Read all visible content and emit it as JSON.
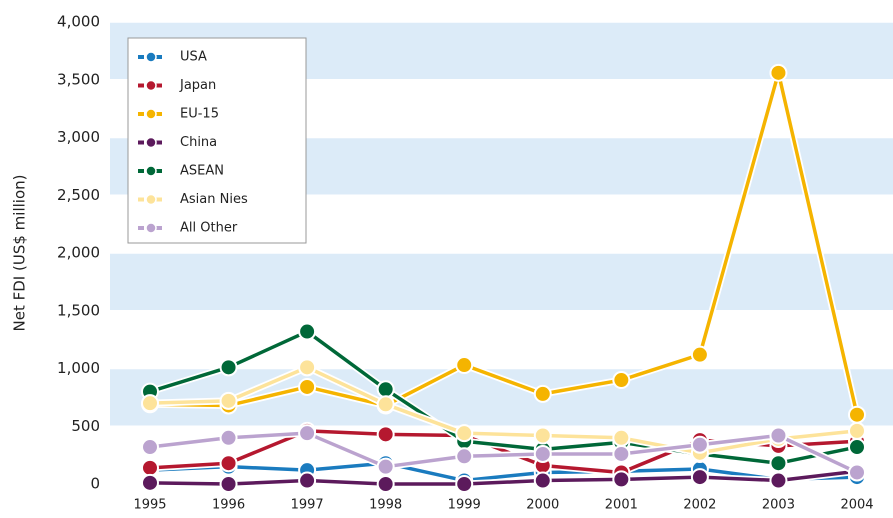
{
  "chart_data": {
    "type": "line",
    "y_label": "Net FDI (US$ million)",
    "categories": [
      "1995",
      "1996",
      "1997",
      "1998",
      "1999",
      "2000",
      "2001",
      "2002",
      "2003",
      "2004"
    ],
    "series": [
      {
        "name": "USA",
        "color": "#1a7bbf",
        "values": [
          120,
          150,
          120,
          180,
          30,
          100,
          110,
          130,
          40,
          60
        ]
      },
      {
        "name": "Japan",
        "color": "#b5182f",
        "values": [
          140,
          180,
          460,
          430,
          420,
          160,
          100,
          380,
          330,
          370
        ]
      },
      {
        "name": "EU-15",
        "color": "#f5b400",
        "values": [
          690,
          680,
          840,
          680,
          1030,
          780,
          900,
          1120,
          3560,
          600
        ]
      },
      {
        "name": "China",
        "color": "#5c1a5c",
        "values": [
          10,
          0,
          30,
          0,
          0,
          30,
          40,
          60,
          30,
          110
        ]
      },
      {
        "name": "ASEAN",
        "color": "#006838",
        "values": [
          800,
          1010,
          1320,
          820,
          370,
          300,
          360,
          260,
          180,
          320
        ]
      },
      {
        "name": "Asian Nies",
        "color": "#fde39a",
        "values": [
          700,
          720,
          1010,
          690,
          440,
          420,
          400,
          270,
          390,
          460
        ]
      },
      {
        "name": "All Other",
        "color": "#bba3cf",
        "values": [
          320,
          400,
          440,
          150,
          240,
          260,
          260,
          340,
          420,
          100
        ]
      }
    ],
    "ylim": [
      0,
      4000
    ],
    "yticks": [
      0,
      500,
      {
        "value": 1000,
        "label": "1,000"
      },
      {
        "value": 1500,
        "label": "1,500"
      },
      {
        "value": 2000,
        "label": "2,000"
      },
      {
        "value": 2500,
        "label": "2,500"
      },
      {
        "value": 3000,
        "label": "3,000"
      },
      {
        "value": 3500,
        "label": "3,500"
      },
      {
        "value": 4000,
        "label": "4,000"
      }
    ],
    "band_color": "#dcebf8",
    "grid": true,
    "legend": "upper left"
  }
}
